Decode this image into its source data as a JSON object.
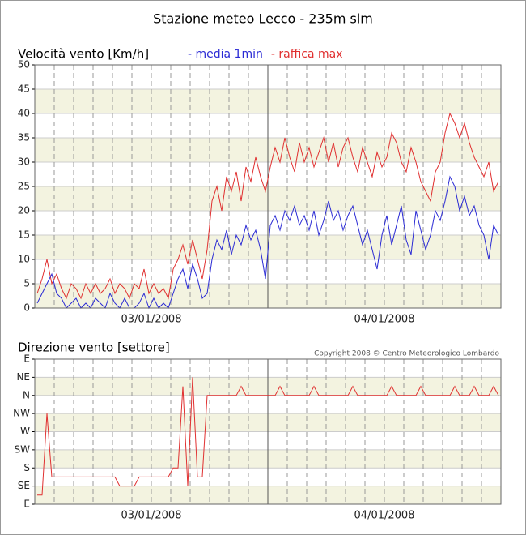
{
  "chart_data": [
    {
      "type": "line",
      "title": "Stazione meteo Lecco - 235m slm",
      "y_label": "Velocità vento [Km/h]",
      "categories": [
        null,
        null,
        null,
        null,
        null,
        null,
        null,
        null,
        null,
        null,
        null,
        null,
        null,
        null,
        null,
        null,
        null,
        null,
        null,
        null,
        null,
        null,
        null,
        null,
        "03/01/2008",
        null,
        null,
        null,
        null,
        null,
        null,
        null,
        null,
        null,
        null,
        null,
        null,
        null,
        null,
        null,
        null,
        null,
        null,
        null,
        null,
        null,
        null,
        null,
        null,
        null,
        null,
        null,
        null,
        null,
        null,
        null,
        null,
        null,
        null,
        null,
        null,
        null,
        null,
        null,
        null,
        null,
        null,
        null,
        null,
        null,
        null,
        null,
        "04/01/2008",
        null,
        null,
        null,
        null,
        null,
        null,
        null,
        null,
        null,
        null,
        null,
        null,
        null,
        null,
        null,
        null,
        null,
        null,
        null,
        null,
        null,
        null,
        null
      ],
      "series": [
        {
          "name": "- raffica max",
          "color": "#e03030",
          "values": [
            3,
            6,
            10,
            5,
            7,
            4,
            2,
            5,
            4,
            2,
            5,
            3,
            5,
            3,
            4,
            6,
            3,
            5,
            4,
            2,
            5,
            4,
            8,
            3,
            5,
            3,
            4,
            2,
            8,
            10,
            13,
            9,
            14,
            10,
            6,
            12,
            22,
            25,
            20,
            27,
            24,
            28,
            22,
            29,
            26,
            31,
            27,
            24,
            29,
            33,
            30,
            35,
            31,
            28,
            34,
            30,
            33,
            29,
            32,
            35,
            30,
            34,
            29,
            33,
            35,
            31,
            28,
            33,
            30,
            27,
            32,
            29,
            31,
            36,
            34,
            30,
            28,
            33,
            30,
            26,
            24,
            22,
            28,
            30,
            36,
            40,
            38,
            35,
            38,
            34,
            31,
            29,
            27,
            30,
            24,
            26
          ]
        },
        {
          "name": "- media 1min",
          "color": "#2a2ad4",
          "values": [
            1,
            3,
            5,
            7,
            3,
            2,
            0,
            1,
            2,
            0,
            1,
            0,
            2,
            1,
            0,
            3,
            1,
            0,
            2,
            0,
            0,
            1,
            3,
            0,
            2,
            0,
            1,
            0,
            3,
            6,
            8,
            4,
            9,
            6,
            2,
            3,
            10,
            14,
            12,
            16,
            11,
            15,
            13,
            17,
            14,
            16,
            12,
            6,
            17,
            19,
            16,
            20,
            18,
            21,
            17,
            19,
            16,
            20,
            15,
            18,
            22,
            18,
            20,
            16,
            19,
            21,
            17,
            13,
            16,
            12,
            8,
            15,
            19,
            13,
            17,
            21,
            14,
            11,
            20,
            16,
            12,
            15,
            20,
            18,
            22,
            27,
            25,
            20,
            23,
            19,
            21,
            17,
            15,
            10,
            17,
            15
          ]
        }
      ],
      "ylim": [
        0,
        50
      ],
      "yticks": [
        0,
        5,
        10,
        15,
        20,
        25,
        30,
        35,
        40,
        45,
        50
      ],
      "bands": true
    },
    {
      "type": "line",
      "y_label": "Direzione vento [settore]",
      "annotation": "Copyright 2008 © Centro Meteorologico Lombardo",
      "categories": [
        null,
        null,
        null,
        null,
        null,
        null,
        null,
        null,
        null,
        null,
        null,
        null,
        null,
        null,
        null,
        null,
        null,
        null,
        null,
        null,
        null,
        null,
        null,
        null,
        "03/01/2008",
        null,
        null,
        null,
        null,
        null,
        null,
        null,
        null,
        null,
        null,
        null,
        null,
        null,
        null,
        null,
        null,
        null,
        null,
        null,
        null,
        null,
        null,
        null,
        null,
        null,
        null,
        null,
        null,
        null,
        null,
        null,
        null,
        null,
        null,
        null,
        null,
        null,
        null,
        null,
        null,
        null,
        null,
        null,
        null,
        null,
        null,
        null,
        "04/01/2008",
        null,
        null,
        null,
        null,
        null,
        null,
        null,
        null,
        null,
        null,
        null,
        null,
        null,
        null,
        null,
        null,
        null,
        null,
        null,
        null,
        null,
        null,
        null
      ],
      "series": [
        {
          "color": "#e03030",
          "values": [
            0.5,
            0.5,
            5,
            1.5,
            1.5,
            1.5,
            1.5,
            1.5,
            1.5,
            1.5,
            1.5,
            1.5,
            1.5,
            1.5,
            1.5,
            1.5,
            1.5,
            1,
            1,
            1,
            1,
            1.5,
            1.5,
            1.5,
            1.5,
            1.5,
            1.5,
            1.5,
            2,
            2,
            6.5,
            1,
            7,
            1.5,
            1.5,
            6,
            6,
            6,
            6,
            6,
            6,
            6,
            6.5,
            6,
            6,
            6,
            6,
            6,
            6,
            6,
            6.5,
            6,
            6,
            6,
            6,
            6,
            6,
            6.5,
            6,
            6,
            6,
            6,
            6,
            6,
            6,
            6.5,
            6,
            6,
            6,
            6,
            6,
            6,
            6,
            6.5,
            6,
            6,
            6,
            6,
            6,
            6.5,
            6,
            6,
            6,
            6,
            6,
            6,
            6.5,
            6,
            6,
            6,
            6.5,
            6,
            6,
            6,
            6.5,
            6
          ]
        }
      ],
      "ylim": [
        0,
        8
      ],
      "yticks": [
        {
          "value": 0,
          "label": "E"
        },
        {
          "value": 1,
          "label": "SE"
        },
        {
          "value": 2,
          "label": "S"
        },
        {
          "value": 3,
          "label": "SW"
        },
        {
          "value": 4,
          "label": "W"
        },
        {
          "value": 5,
          "label": "NW"
        },
        {
          "value": 6,
          "label": "N"
        },
        {
          "value": 7,
          "label": "NE"
        },
        {
          "value": 8,
          "label": "E"
        }
      ],
      "bands": true
    }
  ]
}
